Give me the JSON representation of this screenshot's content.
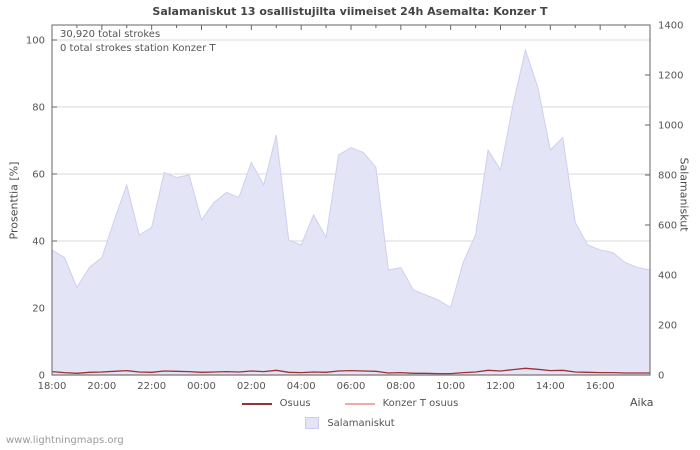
{
  "watermark": "www.lightningmaps.org",
  "colors": {
    "area_fill": "#e4e4f7",
    "area_edge": "#cfcfef",
    "osuus_line": "#993333",
    "konzer_line": "#f0a8a8",
    "grid": "#d8d8d8",
    "axis": "#666666",
    "text": "#555555"
  },
  "chart_data": {
    "type": "area",
    "title": "Salamaniskut 13 osallistujilta viimeiset 24h Asemalta: Konzer T",
    "xlabel": "Aika",
    "ylabel_left": "Prosenttia   [%]",
    "ylabel_right": "Salamaniskut",
    "ylim_left": [
      0,
      100
    ],
    "ylim_right": [
      0,
      1400
    ],
    "left_ticks": [
      0,
      20,
      40,
      60,
      80,
      100
    ],
    "right_ticks": [
      0,
      200,
      400,
      600,
      800,
      1000,
      1200,
      1400
    ],
    "x_ticks": [
      "18:00",
      "20:00",
      "22:00",
      "00:00",
      "02:00",
      "04:00",
      "06:00",
      "08:00",
      "10:00",
      "12:00",
      "14:00",
      "16:00"
    ],
    "annotations": [
      "30,920 total strokes",
      "0 total strokes station Konzer T"
    ],
    "grid": true,
    "legend_position": "bottom",
    "x_interval_minutes": 30,
    "series": [
      {
        "name": "Salamaniskut",
        "type": "area",
        "axis": "right",
        "color": "#e4e4f7",
        "values": [
          500,
          470,
          350,
          430,
          470,
          620,
          760,
          560,
          590,
          810,
          790,
          800,
          620,
          690,
          730,
          710,
          850,
          760,
          960,
          540,
          520,
          640,
          550,
          880,
          910,
          890,
          830,
          420,
          430,
          340,
          320,
          300,
          270,
          450,
          560,
          900,
          820,
          1080,
          1300,
          1150,
          900,
          950,
          610,
          520,
          500,
          490,
          450,
          430,
          420
        ]
      },
      {
        "name": "Osuus",
        "type": "line",
        "axis": "left",
        "color": "#993333",
        "values": [
          1.0,
          0.7,
          0.5,
          0.8,
          0.9,
          1.1,
          1.3,
          0.9,
          0.8,
          1.2,
          1.1,
          1.0,
          0.8,
          0.9,
          1.0,
          0.9,
          1.2,
          1.0,
          1.4,
          0.8,
          0.7,
          0.9,
          0.8,
          1.2,
          1.3,
          1.2,
          1.1,
          0.6,
          0.7,
          0.5,
          0.5,
          0.4,
          0.4,
          0.7,
          0.9,
          1.4,
          1.2,
          1.6,
          2.0,
          1.7,
          1.3,
          1.4,
          0.9,
          0.8,
          0.7,
          0.7,
          0.6,
          0.6,
          0.6
        ]
      },
      {
        "name": "Konzer T osuus",
        "type": "line",
        "axis": "left",
        "color": "#f0a8a8",
        "values": [
          0,
          0,
          0,
          0,
          0,
          0,
          0,
          0,
          0,
          0,
          0,
          0,
          0,
          0,
          0,
          0,
          0,
          0,
          0,
          0,
          0,
          0,
          0,
          0,
          0,
          0,
          0,
          0,
          0,
          0,
          0,
          0,
          0,
          0,
          0,
          0,
          0,
          0,
          0,
          0,
          0,
          0,
          0,
          0,
          0,
          0,
          0,
          0,
          0
        ]
      }
    ]
  }
}
